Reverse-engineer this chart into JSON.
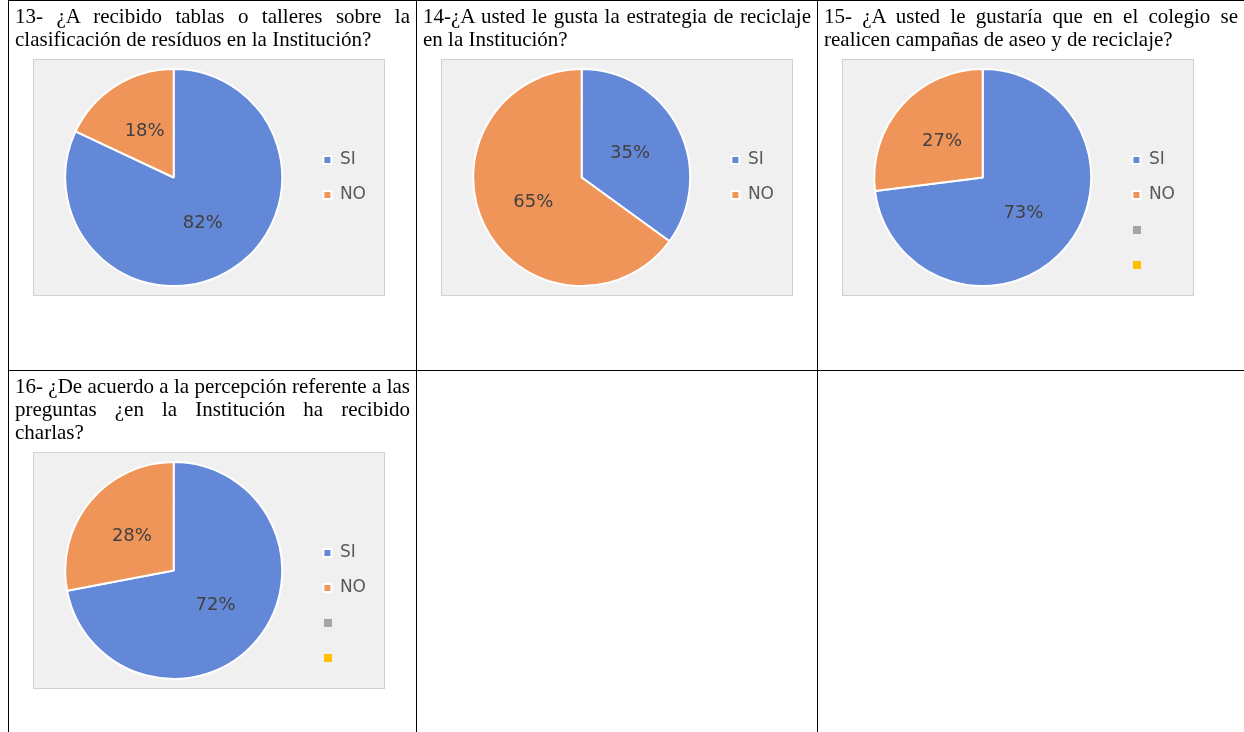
{
  "chart_data": [
    {
      "type": "pie",
      "title": "13- ¿A recibido tablas o talleres sobre la clasificación de resíduos en la Institución?",
      "categories": [
        "SI",
        "NO"
      ],
      "values": [
        82,
        18
      ],
      "colors": [
        "#6488d8",
        "#f0955a"
      ],
      "value_labels": [
        "82%",
        "18%"
      ],
      "legend": "right"
    },
    {
      "type": "pie",
      "title": "14-¿A usted le gusta la estrategia de reciclaje en la Institución?",
      "categories": [
        "SI",
        "NO"
      ],
      "values": [
        35,
        65
      ],
      "colors": [
        "#6488d8",
        "#f0955a"
      ],
      "value_labels": [
        "35%",
        "65%"
      ],
      "legend": "right"
    },
    {
      "type": "pie",
      "title": "15- ¿A usted le gustaría que en el colegio se realicen campañas de aseo y de reciclaje?",
      "categories": [
        "SI",
        "NO"
      ],
      "values": [
        73,
        27
      ],
      "colors": [
        "#6488d8",
        "#f0955a"
      ],
      "value_labels": [
        "73%",
        "27%"
      ],
      "legend": "right"
    },
    {
      "type": "pie",
      "title": "16- ¿De acuerdo a la percepción referente a las preguntas ¿en la Institución ha recibido charlas?",
      "categories": [
        "SI",
        "NO"
      ],
      "values": [
        72,
        28
      ],
      "colors": [
        "#6488d8",
        "#f0955a"
      ],
      "value_labels": [
        "72%",
        "28%"
      ],
      "legend": "right"
    }
  ]
}
